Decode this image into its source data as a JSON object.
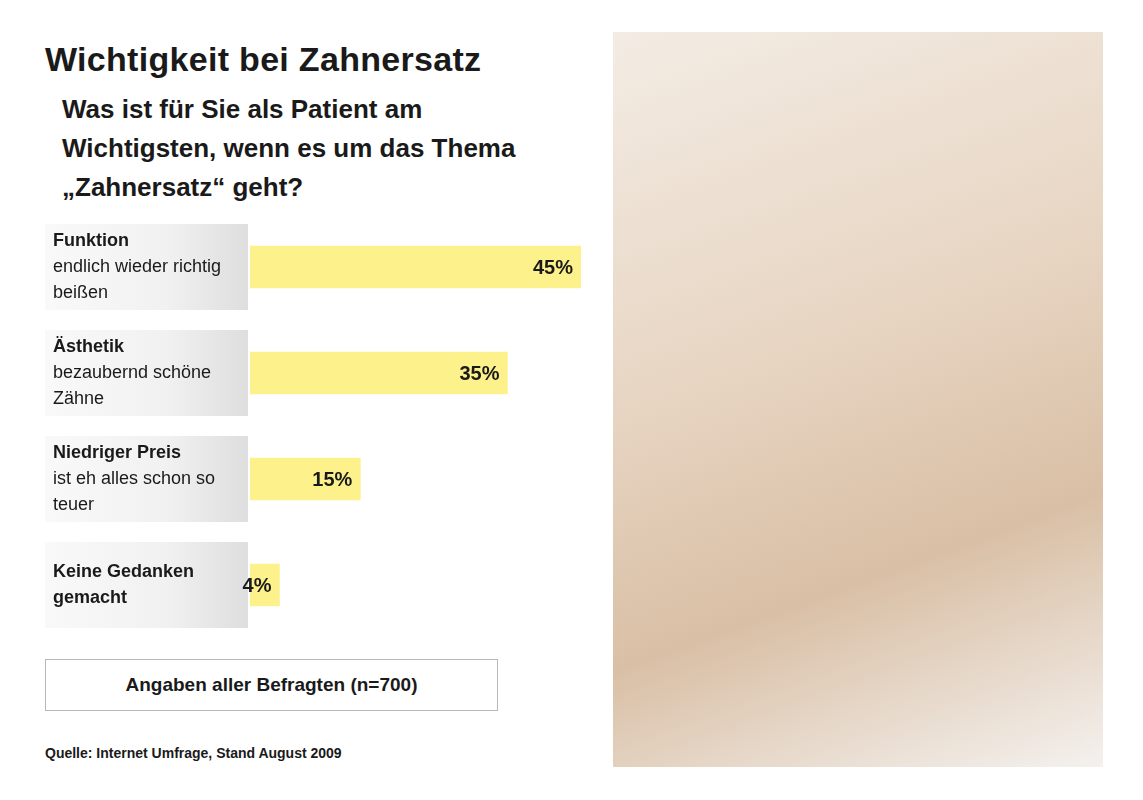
{
  "chart_data": {
    "type": "bar",
    "orientation": "horizontal",
    "title": "Wichtigkeit bei Zahnersatz",
    "subtitle": "Was ist für Sie als Patient am Wichtigsten, wenn es um das Thema „Zahnersatz“ geht?",
    "categories": [
      "Funktion",
      "Ästhetik",
      "Niedriger Preis",
      "Keine Gedanken gemacht"
    ],
    "category_descriptions": [
      "endlich wieder richtig beißen",
      "bezaubernd schöne Zähne",
      "ist eh alles schon so teuer",
      null
    ],
    "values": [
      45,
      35,
      15,
      4
    ],
    "value_labels": [
      "45%",
      "35%",
      "15%",
      "4%"
    ],
    "data_labels": true,
    "color": "#fdf18b",
    "xlim": [
      0,
      45
    ],
    "tick_labels": false,
    "grid": false,
    "note": "Angaben aller Befragten (n=700)",
    "source": "Quelle: Internet Umfrage, Stand August 2009"
  }
}
